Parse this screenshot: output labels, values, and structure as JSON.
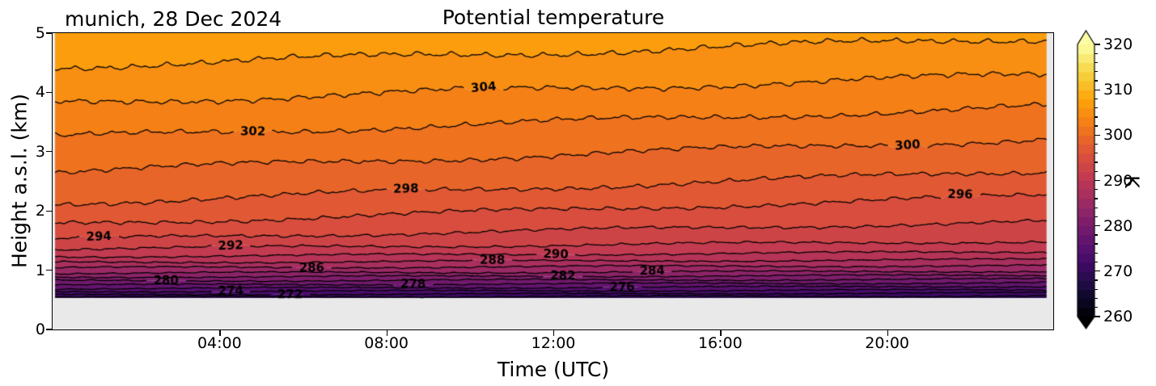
{
  "title": "Potential temperature",
  "subtitle_left": "munich, 28 Dec 2024",
  "axes": {
    "xlabel": "Time (UTC)",
    "ylabel": "Height a.s.l. (km)",
    "facecolor": "#e9e9e9",
    "xlim_hours": [
      0,
      24
    ],
    "ylim_km": [
      0,
      5
    ],
    "x_ticks": [
      {
        "t": 4,
        "label": "04:00"
      },
      {
        "t": 8,
        "label": "08:00"
      },
      {
        "t": 12,
        "label": "12:00"
      },
      {
        "t": 16,
        "label": "16:00"
      },
      {
        "t": 20,
        "label": "20:00"
      }
    ],
    "y_ticks": [
      0,
      1,
      2,
      3,
      4,
      5
    ]
  },
  "colorbar": {
    "label": "K",
    "min": 260,
    "max": 320,
    "ticks": [
      260,
      270,
      280,
      290,
      300,
      310,
      320
    ],
    "minor_step": 2,
    "extend": "both",
    "under_color": "#000004",
    "over_color": "#fcffa4"
  },
  "chart_data": {
    "type": "filled-contour",
    "field": "potential temperature",
    "units": "K",
    "title": "Potential temperature",
    "annotation": "munich, 28 Dec 2024",
    "xlabel": "Time (UTC)",
    "ylabel": "Height a.s.l. (km)",
    "colormap": "inferno",
    "norm_range": [
      260,
      320
    ],
    "level_step": 2,
    "surface_height_km": 0.53,
    "line_color": "#000000",
    "levels": [
      {
        "value": 270,
        "h0": 0.548,
        "h24": 0.565,
        "amp": 0.009
      },
      {
        "value": 272,
        "h0": 0.585,
        "h24": 0.62,
        "amp": 0.008
      },
      {
        "value": 274,
        "h0": 0.64,
        "h24": 0.67,
        "amp": 0.009
      },
      {
        "value": 276,
        "h0": 0.69,
        "h24": 0.73,
        "amp": 0.01
      },
      {
        "value": 278,
        "h0": 0.75,
        "h24": 0.79,
        "amp": 0.01
      },
      {
        "value": 280,
        "h0": 0.82,
        "h24": 0.85,
        "amp": 0.011
      },
      {
        "value": 282,
        "h0": 0.885,
        "h24": 0.915,
        "amp": 0.011
      },
      {
        "value": 284,
        "h0": 0.95,
        "h24": 0.985,
        "amp": 0.012
      },
      {
        "value": 286,
        "h0": 1.04,
        "h24": 1.08,
        "amp": 0.013
      },
      {
        "value": 288,
        "h0": 1.13,
        "h24": 1.18,
        "amp": 0.013
      },
      {
        "value": 290,
        "h0": 1.23,
        "h24": 1.31,
        "amp": 0.015
      },
      {
        "value": 292,
        "h0": 1.36,
        "h24": 1.49,
        "amp": 0.02
      },
      {
        "value": 294,
        "h0": 1.52,
        "h24": 1.82,
        "amp": 0.026
      },
      {
        "value": 296,
        "h0": 1.77,
        "h24": 2.26,
        "amp": 0.034
      },
      {
        "value": 298,
        "h0": 2.13,
        "h24": 2.68,
        "amp": 0.038
      },
      {
        "value": 300,
        "h0": 2.67,
        "h24": 3.22,
        "amp": 0.04
      },
      {
        "value": 302,
        "h0": 3.24,
        "h24": 3.76,
        "amp": 0.042
      },
      {
        "value": 304,
        "h0": 3.82,
        "h24": 4.3,
        "amp": 0.046
      },
      {
        "value": 306,
        "h0": 4.44,
        "h24": 4.92,
        "amp": 0.048
      }
    ],
    "labels": [
      {
        "value": 304,
        "t": 10.33
      },
      {
        "value": 302,
        "t": 4.8
      },
      {
        "value": 300,
        "t": 20.49
      },
      {
        "value": 298,
        "t": 8.47
      },
      {
        "value": 296,
        "t": 21.75
      },
      {
        "value": 294,
        "t": 1.11
      },
      {
        "value": 292,
        "t": 4.27
      },
      {
        "value": 290,
        "t": 12.06
      },
      {
        "value": 288,
        "t": 10.54
      },
      {
        "value": 286,
        "t": 6.21
      },
      {
        "value": 284,
        "t": 14.37
      },
      {
        "value": 282,
        "t": 12.23
      },
      {
        "value": 280,
        "t": 2.72
      },
      {
        "value": 278,
        "t": 8.64
      },
      {
        "value": 276,
        "t": 13.65
      },
      {
        "value": 274,
        "t": 4.27
      },
      {
        "value": 272,
        "t": 5.69
      }
    ],
    "colormap_anchors": [
      [
        "0.00",
        "#000004"
      ],
      [
        "0.10",
        "#160b39"
      ],
      [
        "0.20",
        "#420a68"
      ],
      [
        "0.25",
        "#56106e"
      ],
      [
        "0.30",
        "#6a176e"
      ],
      [
        "0.40",
        "#932667"
      ],
      [
        "0.50",
        "#bc3754"
      ],
      [
        "0.60",
        "#dd513a"
      ],
      [
        "0.70",
        "#f37819"
      ],
      [
        "0.80",
        "#fca50a"
      ],
      [
        "0.90",
        "#f6d543"
      ],
      [
        "1.00",
        "#fcffa4"
      ]
    ]
  }
}
